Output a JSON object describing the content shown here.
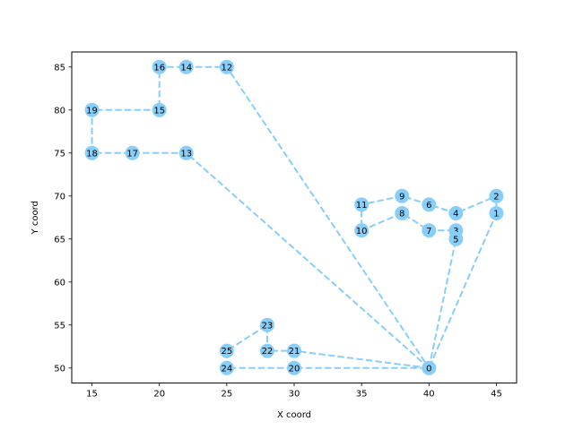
{
  "chart_data": {
    "type": "line",
    "title": "",
    "xlabel": "X coord",
    "ylabel": "Y coord",
    "xlim": [
      13.5,
      46.5
    ],
    "ylim": [
      48.25,
      86.75
    ],
    "x_ticks": [
      15,
      20,
      25,
      30,
      35,
      40,
      45
    ],
    "y_ticks": [
      50,
      55,
      60,
      65,
      70,
      75,
      80,
      85
    ],
    "grid": false,
    "legend": "none",
    "colors": {
      "route": "#87CEFA",
      "node": "#87CEFA",
      "frame": "#000000"
    },
    "nodes": [
      {
        "id": "0",
        "x": 40,
        "y": 50
      },
      {
        "id": "1",
        "x": 45,
        "y": 68
      },
      {
        "id": "2",
        "x": 45,
        "y": 70
      },
      {
        "id": "3",
        "x": 42,
        "y": 66
      },
      {
        "id": "4",
        "x": 42,
        "y": 68
      },
      {
        "id": "5",
        "x": 42,
        "y": 65
      },
      {
        "id": "6",
        "x": 40,
        "y": 69
      },
      {
        "id": "7",
        "x": 40,
        "y": 66
      },
      {
        "id": "8",
        "x": 38,
        "y": 68
      },
      {
        "id": "9",
        "x": 38,
        "y": 70
      },
      {
        "id": "10",
        "x": 35,
        "y": 66
      },
      {
        "id": "11",
        "x": 35,
        "y": 69
      },
      {
        "id": "12",
        "x": 25,
        "y": 85
      },
      {
        "id": "13",
        "x": 22,
        "y": 75
      },
      {
        "id": "14",
        "x": 22,
        "y": 85
      },
      {
        "id": "15",
        "x": 20,
        "y": 80
      },
      {
        "id": "16",
        "x": 20,
        "y": 85
      },
      {
        "id": "17",
        "x": 18,
        "y": 75
      },
      {
        "id": "18",
        "x": 15,
        "y": 75
      },
      {
        "id": "19",
        "x": 15,
        "y": 80
      },
      {
        "id": "20",
        "x": 30,
        "y": 50
      },
      {
        "id": "21",
        "x": 30,
        "y": 52
      },
      {
        "id": "22",
        "x": 28,
        "y": 52
      },
      {
        "id": "23",
        "x": 28,
        "y": 55
      },
      {
        "id": "24",
        "x": 25,
        "y": 50
      },
      {
        "id": "25",
        "x": 25,
        "y": 52
      }
    ],
    "routes": [
      [
        "0",
        "5",
        "3",
        "7",
        "8",
        "10",
        "11",
        "9",
        "6",
        "4",
        "2",
        "1",
        "0"
      ],
      [
        "0",
        "13",
        "17",
        "18",
        "19",
        "15",
        "16",
        "14",
        "12",
        "0"
      ],
      [
        "0",
        "21",
        "22",
        "23",
        "25",
        "24",
        "20",
        "0"
      ]
    ]
  }
}
